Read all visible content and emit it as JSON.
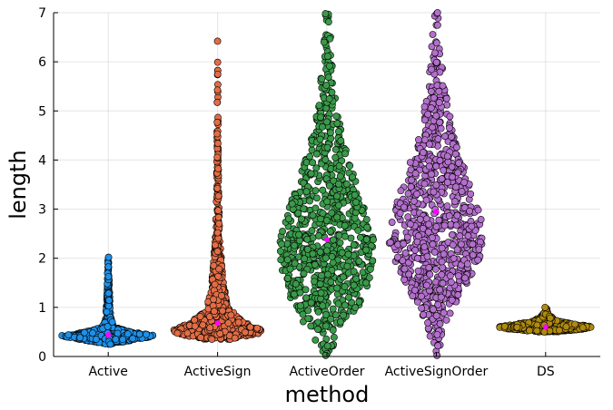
{
  "chart_data": {
    "type": "scatter",
    "subtype": "beeswarm",
    "xlabel": "method",
    "ylabel": "length",
    "ylim": [
      0,
      7
    ],
    "yticks": [
      0,
      1,
      2,
      3,
      4,
      5,
      6,
      7
    ],
    "grid": true,
    "legend": "none",
    "categories": [
      "Active",
      "ActiveSign",
      "ActiveOrder",
      "ActiveSignOrder",
      "DS"
    ],
    "mean_marker_color": "#ff00ff",
    "series": [
      {
        "category": "Active",
        "color": "#1e90e8",
        "n": 700,
        "mean": 0.44,
        "median": 0.42,
        "min": 0.25,
        "max": 2.02,
        "profile": [
          [
            0.25,
            0.05
          ],
          [
            0.35,
            0.6
          ],
          [
            0.42,
            1.0
          ],
          [
            0.5,
            0.5
          ],
          [
            0.6,
            0.12
          ],
          [
            0.8,
            0.05
          ],
          [
            1.2,
            0.03
          ],
          [
            1.6,
            0.02
          ],
          [
            2.02,
            0.01
          ]
        ]
      },
      {
        "category": "ActiveSign",
        "color": "#e26d45",
        "n": 900,
        "mean": 0.68,
        "median": 0.55,
        "min": 0.35,
        "max": 6.42,
        "profile": [
          [
            0.35,
            0.3
          ],
          [
            0.5,
            1.0
          ],
          [
            0.7,
            0.55
          ],
          [
            1.0,
            0.22
          ],
          [
            1.5,
            0.12
          ],
          [
            2.0,
            0.08
          ],
          [
            2.5,
            0.04
          ],
          [
            3.5,
            0.02
          ],
          [
            4.8,
            0.01
          ],
          [
            6.42,
            0.005
          ]
        ]
      },
      {
        "category": "ActiveOrder",
        "color": "#3a9a4a",
        "n": 800,
        "mean": 2.38,
        "median": 2.2,
        "min": 0.02,
        "max": 6.98,
        "profile": [
          [
            0.02,
            0.05
          ],
          [
            0.5,
            0.35
          ],
          [
            1.0,
            0.7
          ],
          [
            1.8,
            0.95
          ],
          [
            2.3,
            1.0
          ],
          [
            3.0,
            0.8
          ],
          [
            4.0,
            0.45
          ],
          [
            5.0,
            0.2
          ],
          [
            6.0,
            0.1
          ],
          [
            6.98,
            0.05
          ]
        ]
      },
      {
        "category": "ActiveSignOrder",
        "color": "#b36fcc",
        "n": 800,
        "mean": 2.95,
        "median": 2.7,
        "min": 0.02,
        "max": 7.0,
        "profile": [
          [
            0.02,
            0.03
          ],
          [
            0.7,
            0.2
          ],
          [
            1.3,
            0.55
          ],
          [
            2.2,
            1.0
          ],
          [
            2.8,
            0.95
          ],
          [
            3.5,
            0.7
          ],
          [
            4.5,
            0.35
          ],
          [
            5.5,
            0.18
          ],
          [
            6.5,
            0.08
          ],
          [
            7.0,
            0.03
          ]
        ]
      },
      {
        "category": "DS",
        "color": "#b08a0e",
        "n": 600,
        "mean": 0.6,
        "median": 0.6,
        "min": 0.5,
        "max": 1.0,
        "profile": [
          [
            0.5,
            0.2
          ],
          [
            0.56,
            0.8
          ],
          [
            0.6,
            1.0
          ],
          [
            0.65,
            0.7
          ],
          [
            0.72,
            0.25
          ],
          [
            0.85,
            0.06
          ],
          [
            1.0,
            0.02
          ]
        ]
      }
    ]
  }
}
